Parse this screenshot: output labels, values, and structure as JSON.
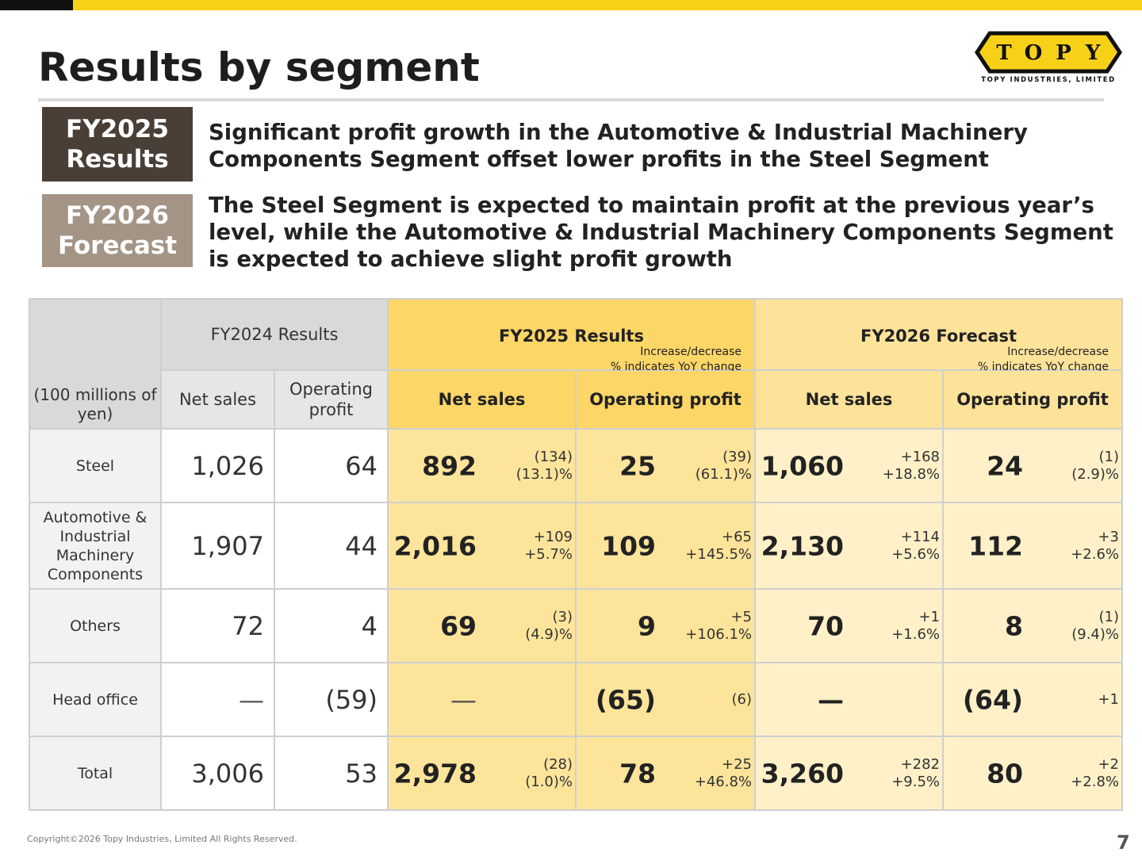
{
  "title": "Results by segment",
  "logo": {
    "mark": "TOPY",
    "letters": [
      "T",
      "O",
      "P",
      "Y"
    ],
    "subtitle": "TOPY INDUSTRIES, LIMITED",
    "colors": {
      "yellow": "#f7d117",
      "dark": "#111111"
    }
  },
  "badges": {
    "results": {
      "line1": "FY2025",
      "line2": "Results",
      "color": "#4a3f37"
    },
    "forecast": {
      "line1": "FY2026",
      "line2": "Forecast",
      "color": "#a39486"
    }
  },
  "summary": {
    "results": "Significant profit growth in the Automotive & Industrial Machinery Components Segment offset lower profits in the Steel Segment",
    "forecast": "The Steel Segment is expected to maintain profit at the previous year’s level, while the Automotive & Industrial Machinery Components Segment is expected to achieve slight profit growth"
  },
  "table": {
    "unit": "(100 millions of yen)",
    "groups": {
      "fy2024": "FY2024 Results",
      "fy2025": "FY2025 Results",
      "fy2026": "FY2026 Forecast",
      "note_line1": "Increase/decrease",
      "note_line2": "% indicates YoY change"
    },
    "columns": {
      "net_sales": "Net sales",
      "operating_profit_24": "Operating profit",
      "operating_profit": "Operating profit"
    },
    "rows": [
      {
        "label": "Steel",
        "fy24_sales": "1,026",
        "fy24_op": "64",
        "fy25_sales": "892",
        "fy25_sales_chg": "(134)",
        "fy25_sales_pct": "(13.1)%",
        "fy25_op": "25",
        "fy25_op_chg": "(39)",
        "fy25_op_pct": "(61.1)%",
        "fy26_sales": "1,060",
        "fy26_sales_chg": "+168",
        "fy26_sales_pct": "+18.8%",
        "fy26_op": "24",
        "fy26_op_chg": "(1)",
        "fy26_op_pct": "(2.9)%"
      },
      {
        "label": "Automotive & Industrial Machinery Components",
        "fy24_sales": "1,907",
        "fy24_op": "44",
        "fy25_sales": "2,016",
        "fy25_sales_chg": "+109",
        "fy25_sales_pct": "+5.7%",
        "fy25_op": "109",
        "fy25_op_chg": "+65",
        "fy25_op_pct": "+145.5%",
        "fy26_sales": "2,130",
        "fy26_sales_chg": "+114",
        "fy26_sales_pct": "+5.6%",
        "fy26_op": "112",
        "fy26_op_chg": "+3",
        "fy26_op_pct": "+2.6%"
      },
      {
        "label": "Others",
        "fy24_sales": "72",
        "fy24_op": "4",
        "fy25_sales": "69",
        "fy25_sales_chg": "(3)",
        "fy25_sales_pct": "(4.9)%",
        "fy25_op": "9",
        "fy25_op_chg": "+5",
        "fy25_op_pct": "+106.1%",
        "fy26_sales": "70",
        "fy26_sales_chg": "+1",
        "fy26_sales_pct": "+1.6%",
        "fy26_op": "8",
        "fy26_op_chg": "(1)",
        "fy26_op_pct": "(9.4)%"
      },
      {
        "label": "Head office",
        "fy24_sales": "—",
        "fy24_op": "(59)",
        "fy25_sales": "—",
        "fy25_sales_chg": "",
        "fy25_sales_pct": "",
        "fy25_op": "(65)",
        "fy25_op_chg": "(6)",
        "fy25_op_pct": "",
        "fy26_sales": "—",
        "fy26_sales_chg": "",
        "fy26_sales_pct": "",
        "fy26_op": "(64)",
        "fy26_op_chg": "+1",
        "fy26_op_pct": ""
      },
      {
        "label": "Total",
        "fy24_sales": "3,006",
        "fy24_op": "53",
        "fy25_sales": "2,978",
        "fy25_sales_chg": "(28)",
        "fy25_sales_pct": "(1.0)%",
        "fy25_op": "78",
        "fy25_op_chg": "+25",
        "fy25_op_pct": "+46.8%",
        "fy26_sales": "3,260",
        "fy26_sales_chg": "+282",
        "fy26_sales_pct": "+9.5%",
        "fy26_op": "80",
        "fy26_op_chg": "+2",
        "fy26_op_pct": "+2.8%"
      }
    ]
  },
  "footer": {
    "copyright": "Copyright©2026 Topy Industries, Limited All Rights Reserved.",
    "page": "7"
  }
}
